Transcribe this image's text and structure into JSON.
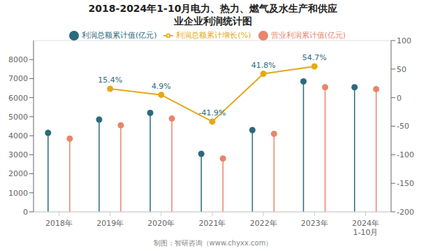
{
  "chart_data": {
    "type": "lollipop",
    "title": "2018-2024年1-10月电力、热力、燃气及水生产和供应",
    "subtitle": "业企业利润统计图",
    "annotations": [
      "制图：智研咨询（www.chyxx.com）"
    ],
    "categories": [
      "2018年",
      "2019年",
      "2020年",
      "2021年",
      "2022年",
      "2023年",
      "2024年\n1-10月"
    ],
    "series": [
      {
        "name": "利润总额累计值(亿元)",
        "type": "lollipop",
        "color": "#2B6A7C",
        "marker": "circle",
        "values": [
          4150,
          4850,
          5200,
          3050,
          4300,
          6850,
          6550
        ]
      },
      {
        "name": "营业利润累计值(亿元)",
        "type": "lollipop",
        "color": "#E8856A",
        "marker": "circle",
        "values": [
          3850,
          4550,
          4900,
          2800,
          4100,
          6550,
          6450
        ]
      },
      {
        "name": "利润总额累计增长(%)",
        "type": "line",
        "axis": "y2",
        "color": "#E6A817",
        "marker": "circle",
        "data_labels": true,
        "values": [
          null,
          15.4,
          4.9,
          -41.9,
          41.8,
          54.7,
          null
        ],
        "value_labels": [
          null,
          "15.4%",
          "4.9%",
          "-41.9%",
          "41.8%",
          "54.7%",
          null
        ]
      }
    ],
    "ylim": [
      0,
      9000
    ],
    "yticks": [
      0,
      1000,
      2000,
      3000,
      4000,
      5000,
      6000,
      7000,
      8000
    ],
    "y2lim": [
      -200,
      100
    ],
    "y2ticks": [
      -200,
      -150,
      -100,
      -50,
      0,
      50,
      100
    ],
    "grid": true,
    "legend": "top"
  }
}
